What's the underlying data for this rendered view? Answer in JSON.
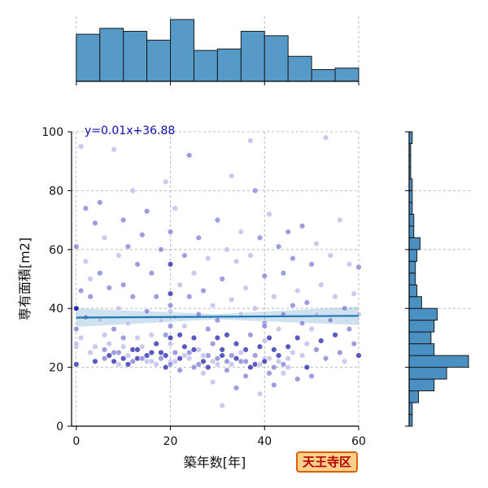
{
  "chart_data": {
    "type": "scatter",
    "xlabel": "築年数[年]",
    "ylabel": "専有面積[m2]",
    "xlim": [
      -1,
      60
    ],
    "ylim": [
      0,
      100
    ],
    "x_ticks": [
      0,
      20,
      40,
      60
    ],
    "y_ticks": [
      0,
      20,
      40,
      60,
      80,
      100
    ],
    "grid": true,
    "regression": {
      "label": "y=0.01x+36.88",
      "slope": 0.01,
      "intercept": 36.88,
      "color": "#1f77b4"
    },
    "points": [
      [
        0,
        21
      ],
      [
        0,
        27
      ],
      [
        0,
        33
      ],
      [
        0,
        40
      ],
      [
        0,
        61
      ],
      [
        1,
        30
      ],
      [
        1,
        46
      ],
      [
        1,
        95
      ],
      [
        2,
        74
      ],
      [
        2,
        56
      ],
      [
        2,
        37
      ],
      [
        3,
        50
      ],
      [
        3,
        44
      ],
      [
        3,
        25
      ],
      [
        4,
        69
      ],
      [
        4,
        22
      ],
      [
        5,
        76
      ],
      [
        5,
        36
      ],
      [
        5,
        52
      ],
      [
        6,
        31
      ],
      [
        6,
        23
      ],
      [
        6,
        64
      ],
      [
        7,
        47
      ],
      [
        7,
        28
      ],
      [
        8,
        22
      ],
      [
        8,
        94
      ],
      [
        8,
        33
      ],
      [
        9,
        58
      ],
      [
        9,
        25
      ],
      [
        9,
        40
      ],
      [
        10,
        70
      ],
      [
        10,
        27
      ],
      [
        10,
        48
      ],
      [
        11,
        21
      ],
      [
        11,
        61
      ],
      [
        11,
        35
      ],
      [
        12,
        26
      ],
      [
        12,
        80
      ],
      [
        12,
        44
      ],
      [
        13,
        23
      ],
      [
        13,
        55
      ],
      [
        13,
        30
      ],
      [
        14,
        65
      ],
      [
        14,
        27
      ],
      [
        15,
        39
      ],
      [
        15,
        24
      ],
      [
        15,
        73
      ],
      [
        16,
        31
      ],
      [
        16,
        52
      ],
      [
        16,
        22
      ],
      [
        17,
        44
      ],
      [
        17,
        28
      ],
      [
        18,
        60
      ],
      [
        18,
        36
      ],
      [
        18,
        25
      ],
      [
        19,
        83
      ],
      [
        19,
        31
      ],
      [
        19,
        20
      ],
      [
        20,
        41
      ],
      [
        20,
        28
      ],
      [
        20,
        55
      ],
      [
        20,
        22
      ],
      [
        20,
        66
      ],
      [
        21,
        37
      ],
      [
        21,
        25
      ],
      [
        21,
        74
      ],
      [
        22,
        31
      ],
      [
        22,
        48
      ],
      [
        22,
        19
      ],
      [
        23,
        27
      ],
      [
        23,
        58
      ],
      [
        23,
        34
      ],
      [
        24,
        92
      ],
      [
        24,
        23
      ],
      [
        24,
        44
      ],
      [
        25,
        30
      ],
      [
        25,
        20
      ],
      [
        25,
        52
      ],
      [
        26,
        38
      ],
      [
        26,
        26
      ],
      [
        26,
        64
      ],
      [
        27,
        22
      ],
      [
        27,
        46
      ],
      [
        27,
        18
      ],
      [
        28,
        33
      ],
      [
        28,
        57
      ],
      [
        28,
        24
      ],
      [
        29,
        41
      ],
      [
        29,
        28
      ],
      [
        29,
        15
      ],
      [
        30,
        70
      ],
      [
        30,
        21
      ],
      [
        30,
        36
      ],
      [
        31,
        26
      ],
      [
        31,
        50
      ],
      [
        31,
        7
      ],
      [
        32,
        31
      ],
      [
        32,
        60
      ],
      [
        32,
        19
      ],
      [
        33,
        43
      ],
      [
        33,
        24
      ],
      [
        33,
        85
      ],
      [
        34,
        28
      ],
      [
        34,
        56
      ],
      [
        34,
        13
      ],
      [
        35,
        38
      ],
      [
        35,
        22
      ],
      [
        35,
        66
      ],
      [
        36,
        26
      ],
      [
        36,
        47
      ],
      [
        36,
        17
      ],
      [
        37,
        97
      ],
      [
        37,
        31
      ],
      [
        37,
        58
      ],
      [
        38,
        21
      ],
      [
        38,
        40
      ],
      [
        38,
        80
      ],
      [
        39,
        27
      ],
      [
        39,
        64
      ],
      [
        39,
        11
      ],
      [
        40,
        35
      ],
      [
        40,
        23
      ],
      [
        40,
        51
      ],
      [
        41,
        30
      ],
      [
        41,
        18
      ],
      [
        41,
        72
      ],
      [
        42,
        26
      ],
      [
        42,
        44
      ],
      [
        42,
        14
      ],
      [
        43,
        33
      ],
      [
        43,
        61
      ],
      [
        43,
        22
      ],
      [
        44,
        38
      ],
      [
        44,
        18
      ],
      [
        44,
        52
      ],
      [
        45,
        27
      ],
      [
        45,
        66
      ],
      [
        45,
        20
      ],
      [
        46,
        41
      ],
      [
        46,
        25
      ],
      [
        46,
        57
      ],
      [
        47,
        30
      ],
      [
        47,
        16
      ],
      [
        47,
        46
      ],
      [
        48,
        35
      ],
      [
        48,
        24
      ],
      [
        48,
        68
      ],
      [
        49,
        20
      ],
      [
        49,
        42
      ],
      [
        49,
        28
      ],
      [
        50,
        55
      ],
      [
        50,
        33
      ],
      [
        50,
        17
      ],
      [
        51,
        38
      ],
      [
        51,
        26
      ],
      [
        51,
        62
      ],
      [
        52,
        29
      ],
      [
        52,
        48
      ],
      [
        53,
        23
      ],
      [
        53,
        98
      ],
      [
        54,
        36
      ],
      [
        54,
        58
      ],
      [
        55,
        31
      ],
      [
        55,
        44
      ],
      [
        56,
        25
      ],
      [
        56,
        70
      ],
      [
        57,
        40
      ],
      [
        57,
        22
      ],
      [
        58,
        33
      ],
      [
        58,
        55
      ],
      [
        59,
        28
      ],
      [
        59,
        45
      ],
      [
        60,
        54
      ],
      [
        60,
        38
      ],
      [
        60,
        24
      ],
      [
        4,
        27
      ],
      [
        6,
        26
      ],
      [
        7,
        24
      ],
      [
        8,
        25
      ],
      [
        9,
        21
      ],
      [
        10,
        23
      ],
      [
        11,
        24
      ],
      [
        12,
        22
      ],
      [
        13,
        26
      ],
      [
        14,
        23
      ],
      [
        15,
        22
      ],
      [
        16,
        25
      ],
      [
        17,
        21
      ],
      [
        18,
        23
      ],
      [
        19,
        24
      ],
      [
        20,
        21
      ],
      [
        21,
        22
      ],
      [
        22,
        23
      ],
      [
        23,
        24
      ],
      [
        24,
        25
      ],
      [
        25,
        26
      ],
      [
        26,
        21
      ],
      [
        27,
        24
      ],
      [
        28,
        20
      ],
      [
        29,
        22
      ],
      [
        30,
        23
      ],
      [
        31,
        24
      ],
      [
        32,
        22
      ],
      [
        33,
        21
      ],
      [
        34,
        23
      ],
      [
        35,
        25
      ],
      [
        36,
        22
      ],
      [
        37,
        20
      ],
      [
        38,
        24
      ],
      [
        39,
        21
      ],
      [
        40,
        22
      ],
      [
        41,
        23
      ],
      [
        42,
        20
      ],
      [
        43,
        24
      ],
      [
        44,
        21
      ],
      [
        45,
        23
      ],
      [
        0,
        40
      ],
      [
        20,
        39
      ],
      [
        20,
        34
      ],
      [
        20,
        30
      ],
      [
        40,
        34
      ],
      [
        40,
        29
      ],
      [
        20,
        45
      ],
      [
        0,
        28
      ],
      [
        10,
        30
      ],
      [
        30,
        30
      ]
    ],
    "top_hist": {
      "bin_edges": [
        0,
        5,
        10,
        15,
        20,
        25,
        30,
        35,
        40,
        45,
        50,
        55,
        60
      ],
      "counts": [
        32,
        36,
        34,
        28,
        42,
        21,
        22,
        34,
        31,
        17,
        8,
        9
      ]
    },
    "right_hist": {
      "bin_edges": [
        0,
        4,
        8,
        12,
        16,
        20,
        24,
        28,
        32,
        36,
        40,
        44,
        48,
        52,
        56,
        60,
        64,
        68,
        72,
        76,
        80,
        84,
        88,
        92,
        96,
        100
      ],
      "counts": [
        2,
        2,
        6,
        16,
        24,
        38,
        16,
        14,
        16,
        18,
        8,
        5,
        4,
        4,
        5,
        7,
        3,
        3,
        2,
        2,
        2,
        1,
        1,
        1,
        2
      ],
      "color": "#4a90c2"
    }
  },
  "badge": {
    "text": "天王寺区"
  }
}
